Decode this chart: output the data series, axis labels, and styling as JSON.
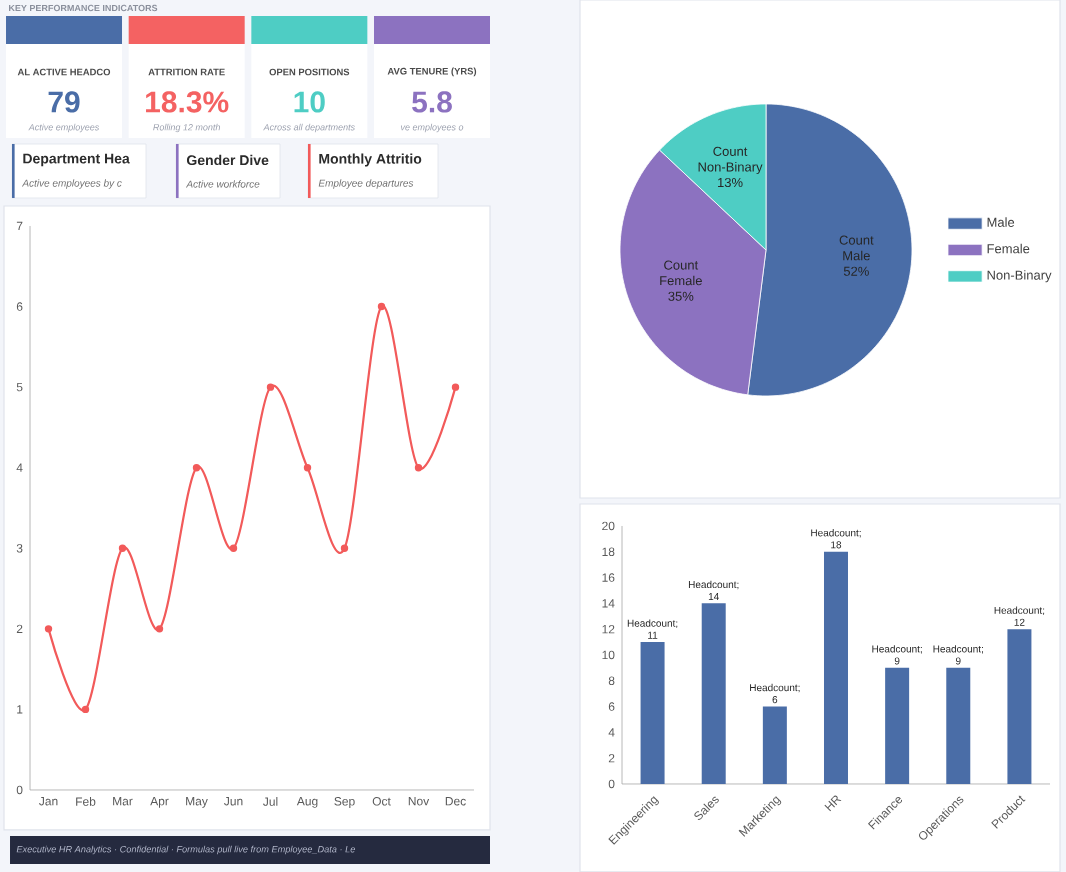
{
  "chart_data": [
    {
      "type": "other",
      "title": "KEY PERFORMANCE INDICATORS",
      "categories": [
        "AL ACTIVE HEADCO",
        "ATTRITION RATE",
        "OPEN POSITIONS",
        "AVG TENURE (YRS)"
      ],
      "value_labels": [
        "79",
        "18.3%",
        "10",
        "5.8"
      ],
      "annotations": [
        "Active employees",
        "Rolling 12 month",
        "Across all departments",
        "ve employees o",
        "Department Hea",
        "Active employees by c",
        "Gender Dive",
        "Active workforce"
      ]
    },
    {
      "type": "line",
      "title": "Monthly Attritio",
      "subtitle": "Employee departures",
      "categories": [
        "Jan",
        "Feb",
        "Mar",
        "Apr",
        "May",
        "Jun",
        "Jul",
        "Aug",
        "Sep",
        "Oct",
        "Nov",
        "Dec"
      ],
      "values": [
        2,
        1,
        3,
        2,
        4,
        3,
        5,
        4,
        3,
        6,
        4,
        5
      ],
      "color": "#f25a5a",
      "ylim": [
        0,
        7
      ],
      "yticks": [
        0,
        1,
        2,
        3,
        4,
        5,
        6,
        7
      ],
      "marker": "circle",
      "line_style": "solid",
      "annotations": [
        "Executive HR Analytics · Confidential · Formulas pull live from Employee_Data · Le"
      ]
    },
    {
      "type": "pie",
      "categories": [
        "Male",
        "Female",
        "Non-Binary"
      ],
      "colors": [
        "#4a6da7",
        "#8c72c0",
        "#4ecdc4"
      ],
      "series": [
        {
          "name": "Count",
          "values": [
            52,
            35,
            13
          ],
          "value_labels": [
            "52%",
            "35%",
            "13%"
          ]
        }
      ],
      "legend": "right"
    },
    {
      "type": "bar",
      "categories": [
        "Engineering",
        "Sales",
        "Marketing",
        "HR",
        "Finance",
        "Operations",
        "Product"
      ],
      "values": [
        11,
        14,
        6,
        18,
        9,
        9,
        12
      ],
      "color": "#4a6da7",
      "value_labels": [
        "Headcount; 11",
        "Headcount; 14",
        "Headcount; 6",
        "Headcount; 18",
        "Headcount; 9",
        "Headcount; 9",
        "Headcount; 12"
      ],
      "ylim": [
        0,
        20
      ],
      "yticks": [
        0,
        2,
        4,
        6,
        8,
        10,
        12,
        14,
        16,
        18,
        20
      ]
    }
  ]
}
